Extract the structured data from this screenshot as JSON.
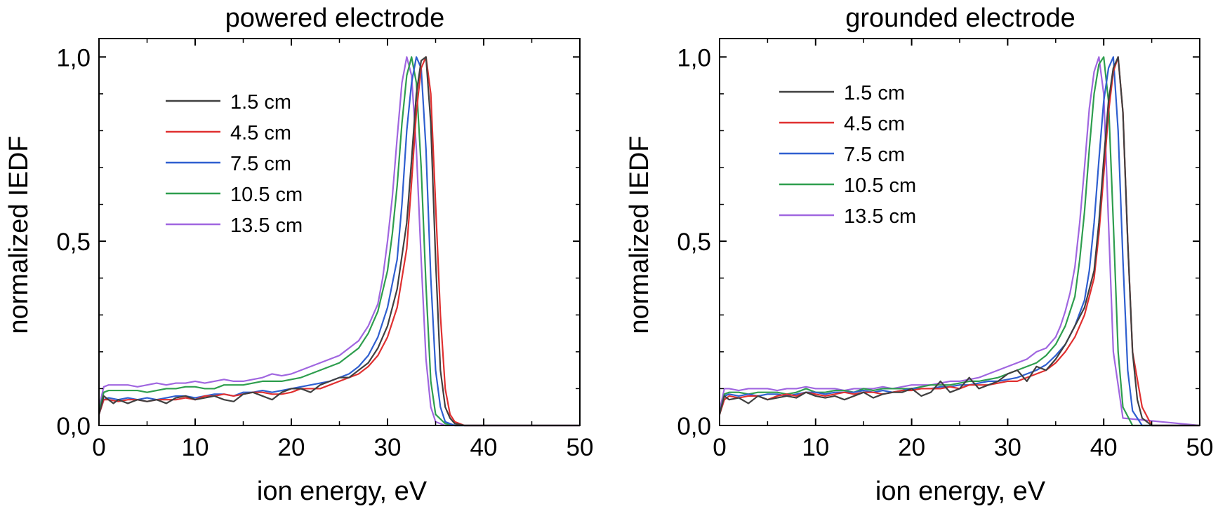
{
  "chart_data": [
    {
      "type": "line",
      "title": "powered electrode",
      "xlabel": "ion energy, eV",
      "ylabel": "normalized IEDF",
      "xlim": [
        0,
        50
      ],
      "ylim": [
        0,
        1.05
      ],
      "xticks": [
        0,
        10,
        20,
        30,
        40,
        50
      ],
      "yticks": [
        0.0,
        0.5,
        1.0
      ],
      "xtick_labels": [
        "0",
        "10",
        "20",
        "30",
        "40",
        "50"
      ],
      "ytick_labels": [
        "0,0",
        "0,5",
        "1,0"
      ],
      "legend_position": "top-left",
      "series": [
        {
          "name": "1.5 cm",
          "color": "#404040",
          "x": [
            0,
            0.5,
            1,
            1.5,
            2,
            3,
            4,
            5,
            6,
            7,
            8,
            9,
            10,
            11,
            12,
            13,
            14,
            15,
            16,
            17,
            18,
            19,
            20,
            21,
            22,
            23,
            24,
            25,
            26,
            27,
            28,
            29,
            30,
            31,
            32,
            32.5,
            33,
            33.5,
            34,
            34.5,
            35,
            35.5,
            36,
            36.5,
            37,
            38,
            40,
            50
          ],
          "y": [
            0.03,
            0.08,
            0.07,
            0.06,
            0.07,
            0.06,
            0.07,
            0.065,
            0.07,
            0.06,
            0.075,
            0.08,
            0.07,
            0.075,
            0.08,
            0.07,
            0.065,
            0.085,
            0.09,
            0.08,
            0.07,
            0.09,
            0.1,
            0.1,
            0.09,
            0.11,
            0.12,
            0.13,
            0.13,
            0.15,
            0.17,
            0.21,
            0.27,
            0.37,
            0.55,
            0.72,
            0.9,
            0.99,
            1.0,
            0.82,
            0.45,
            0.15,
            0.05,
            0.02,
            0.005,
            0,
            0,
            0
          ]
        },
        {
          "name": "4.5 cm",
          "color": "#e03030",
          "x": [
            0,
            0.5,
            1,
            2,
            3,
            4,
            5,
            6,
            7,
            8,
            9,
            10,
            11,
            12,
            13,
            14,
            15,
            16,
            17,
            18,
            19,
            20,
            21,
            22,
            23,
            24,
            25,
            26,
            27,
            28,
            29,
            30,
            31,
            32,
            32.5,
            33,
            33.5,
            34,
            34.5,
            35,
            35.5,
            36,
            36.5,
            37,
            38,
            40,
            50
          ],
          "y": [
            0.03,
            0.07,
            0.07,
            0.065,
            0.07,
            0.07,
            0.065,
            0.07,
            0.07,
            0.07,
            0.075,
            0.07,
            0.08,
            0.08,
            0.085,
            0.08,
            0.085,
            0.09,
            0.09,
            0.085,
            0.085,
            0.09,
            0.1,
            0.1,
            0.1,
            0.11,
            0.12,
            0.13,
            0.14,
            0.16,
            0.19,
            0.24,
            0.32,
            0.48,
            0.66,
            0.85,
            0.97,
            1.0,
            0.9,
            0.6,
            0.3,
            0.1,
            0.03,
            0.01,
            0,
            0,
            0
          ]
        },
        {
          "name": "7.5 cm",
          "color": "#2f5fd0",
          "x": [
            0,
            0.5,
            1,
            2,
            3,
            4,
            5,
            6,
            7,
            8,
            9,
            10,
            11,
            12,
            13,
            14,
            15,
            16,
            17,
            18,
            19,
            20,
            21,
            22,
            23,
            24,
            25,
            26,
            27,
            28,
            29,
            30,
            31,
            31.5,
            32,
            32.5,
            33,
            33.5,
            34,
            34.5,
            35,
            35.5,
            36,
            37,
            38,
            40,
            50
          ],
          "y": [
            0.03,
            0.07,
            0.075,
            0.07,
            0.075,
            0.07,
            0.075,
            0.07,
            0.075,
            0.08,
            0.08,
            0.075,
            0.08,
            0.085,
            0.085,
            0.08,
            0.09,
            0.09,
            0.095,
            0.09,
            0.095,
            0.1,
            0.105,
            0.11,
            0.115,
            0.12,
            0.13,
            0.14,
            0.16,
            0.19,
            0.24,
            0.32,
            0.45,
            0.6,
            0.8,
            0.93,
            1.0,
            0.97,
            0.75,
            0.4,
            0.15,
            0.05,
            0.01,
            0,
            0,
            0,
            0
          ]
        },
        {
          "name": "10.5 cm",
          "color": "#2e9e4e",
          "x": [
            0,
            0.5,
            1,
            2,
            3,
            4,
            5,
            6,
            7,
            8,
            9,
            10,
            11,
            12,
            13,
            14,
            15,
            16,
            17,
            18,
            19,
            20,
            21,
            22,
            23,
            24,
            25,
            26,
            27,
            28,
            29,
            30,
            30.5,
            31,
            31.5,
            32,
            32.5,
            33,
            33.5,
            34,
            34.5,
            35,
            36,
            37,
            38,
            40,
            50
          ],
          "y": [
            0.04,
            0.09,
            0.095,
            0.095,
            0.095,
            0.095,
            0.09,
            0.095,
            0.1,
            0.1,
            0.105,
            0.105,
            0.1,
            0.1,
            0.11,
            0.11,
            0.11,
            0.115,
            0.12,
            0.12,
            0.12,
            0.125,
            0.13,
            0.14,
            0.15,
            0.16,
            0.17,
            0.19,
            0.21,
            0.25,
            0.31,
            0.42,
            0.52,
            0.65,
            0.82,
            0.95,
            1.0,
            0.93,
            0.7,
            0.38,
            0.12,
            0.03,
            0.005,
            0,
            0,
            0,
            0
          ]
        },
        {
          "name": "13.5 cm",
          "color": "#a066e0",
          "x": [
            0,
            0.5,
            1,
            2,
            3,
            4,
            5,
            6,
            7,
            8,
            9,
            10,
            11,
            12,
            13,
            14,
            15,
            16,
            17,
            18,
            19,
            20,
            21,
            22,
            23,
            24,
            25,
            26,
            27,
            28,
            29,
            29.5,
            30,
            30.5,
            31,
            31.5,
            32,
            32.5,
            33,
            33.5,
            34,
            34.5,
            35,
            36,
            38,
            40,
            50
          ],
          "y": [
            0.05,
            0.105,
            0.11,
            0.11,
            0.11,
            0.105,
            0.11,
            0.115,
            0.11,
            0.115,
            0.115,
            0.12,
            0.115,
            0.12,
            0.125,
            0.12,
            0.12,
            0.125,
            0.13,
            0.14,
            0.135,
            0.14,
            0.15,
            0.16,
            0.17,
            0.18,
            0.19,
            0.21,
            0.23,
            0.27,
            0.33,
            0.4,
            0.5,
            0.62,
            0.78,
            0.93,
            1.0,
            0.95,
            0.75,
            0.45,
            0.18,
            0.05,
            0.01,
            0,
            0,
            0,
            0
          ]
        }
      ]
    },
    {
      "type": "line",
      "title": "grounded electrode",
      "xlabel": "ion energy, eV",
      "ylabel": "normalized IEDF",
      "xlim": [
        0,
        50
      ],
      "ylim": [
        0,
        1.05
      ],
      "xticks": [
        0,
        10,
        20,
        30,
        40,
        50
      ],
      "yticks": [
        0.0,
        0.5,
        1.0
      ],
      "xtick_labels": [
        "0",
        "10",
        "20",
        "30",
        "40",
        "50"
      ],
      "ytick_labels": [
        "0,0",
        "0,5",
        "1,0"
      ],
      "legend_position": "top-left",
      "series": [
        {
          "name": "1.5 cm",
          "color": "#404040",
          "x": [
            0,
            0.5,
            1,
            2,
            3,
            4,
            5,
            6,
            7,
            8,
            9,
            10,
            11,
            12,
            13,
            14,
            15,
            16,
            17,
            18,
            19,
            20,
            21,
            22,
            23,
            24,
            25,
            26,
            27,
            28,
            29,
            30,
            31,
            32,
            33,
            34,
            35,
            36,
            37,
            38,
            39,
            39.5,
            40,
            40.5,
            41,
            41.5,
            42,
            42.5,
            43,
            43.5,
            44,
            45,
            46,
            50
          ],
          "y": [
            0.03,
            0.08,
            0.07,
            0.075,
            0.06,
            0.08,
            0.07,
            0.075,
            0.08,
            0.075,
            0.09,
            0.08,
            0.075,
            0.08,
            0.07,
            0.08,
            0.09,
            0.075,
            0.085,
            0.09,
            0.09,
            0.1,
            0.08,
            0.09,
            0.12,
            0.09,
            0.1,
            0.13,
            0.1,
            0.11,
            0.12,
            0.14,
            0.15,
            0.12,
            0.16,
            0.15,
            0.18,
            0.22,
            0.27,
            0.32,
            0.42,
            0.55,
            0.72,
            0.88,
            0.97,
            1.0,
            0.85,
            0.5,
            0.2,
            0.07,
            0.02,
            0,
            0,
            0
          ]
        },
        {
          "name": "4.5 cm",
          "color": "#e03030",
          "x": [
            0,
            0.5,
            1,
            2,
            3,
            4,
            5,
            6,
            7,
            8,
            9,
            10,
            11,
            12,
            13,
            14,
            15,
            16,
            17,
            18,
            19,
            20,
            21,
            22,
            23,
            24,
            25,
            26,
            27,
            28,
            29,
            30,
            31,
            32,
            33,
            34,
            35,
            36,
            37,
            38,
            39,
            39.5,
            40,
            40.5,
            41,
            41.5,
            42,
            42.5,
            43,
            44,
            45,
            50
          ],
          "y": [
            0.03,
            0.07,
            0.08,
            0.075,
            0.08,
            0.08,
            0.07,
            0.08,
            0.085,
            0.08,
            0.09,
            0.085,
            0.08,
            0.085,
            0.09,
            0.085,
            0.09,
            0.09,
            0.085,
            0.09,
            0.095,
            0.095,
            0.1,
            0.1,
            0.1,
            0.105,
            0.1,
            0.11,
            0.11,
            0.11,
            0.115,
            0.12,
            0.12,
            0.13,
            0.14,
            0.15,
            0.17,
            0.2,
            0.24,
            0.3,
            0.4,
            0.52,
            0.68,
            0.85,
            0.96,
            1.0,
            0.85,
            0.5,
            0.2,
            0.05,
            0,
            0
          ]
        },
        {
          "name": "7.5 cm",
          "color": "#2f5fd0",
          "x": [
            0,
            0.5,
            1,
            2,
            3,
            4,
            5,
            6,
            7,
            8,
            9,
            10,
            11,
            12,
            13,
            14,
            15,
            16,
            17,
            18,
            19,
            20,
            21,
            22,
            23,
            24,
            25,
            26,
            27,
            28,
            29,
            30,
            31,
            32,
            33,
            34,
            35,
            36,
            37,
            38,
            38.5,
            39,
            39.5,
            40,
            40.5,
            41,
            41.5,
            42,
            42.5,
            43,
            44,
            50
          ],
          "y": [
            0.03,
            0.08,
            0.085,
            0.08,
            0.085,
            0.08,
            0.085,
            0.085,
            0.08,
            0.085,
            0.09,
            0.09,
            0.085,
            0.09,
            0.09,
            0.09,
            0.095,
            0.09,
            0.095,
            0.09,
            0.095,
            0.1,
            0.1,
            0.1,
            0.105,
            0.105,
            0.11,
            0.11,
            0.115,
            0.12,
            0.12,
            0.125,
            0.13,
            0.14,
            0.15,
            0.165,
            0.19,
            0.22,
            0.27,
            0.34,
            0.42,
            0.55,
            0.72,
            0.88,
            0.97,
            1.0,
            0.8,
            0.45,
            0.15,
            0.04,
            0,
            0
          ]
        },
        {
          "name": "10.5 cm",
          "color": "#2e9e4e",
          "x": [
            0,
            0.5,
            1,
            2,
            3,
            4,
            5,
            6,
            7,
            8,
            9,
            10,
            11,
            12,
            13,
            14,
            15,
            16,
            17,
            18,
            19,
            20,
            21,
            22,
            23,
            24,
            25,
            26,
            27,
            28,
            29,
            30,
            31,
            32,
            33,
            34,
            35,
            36,
            37,
            37.5,
            38,
            38.5,
            39,
            39.5,
            40,
            40.5,
            41,
            41.5,
            42,
            43,
            50
          ],
          "y": [
            0.03,
            0.085,
            0.09,
            0.09,
            0.085,
            0.09,
            0.09,
            0.09,
            0.085,
            0.09,
            0.1,
            0.09,
            0.09,
            0.095,
            0.095,
            0.09,
            0.1,
            0.095,
            0.1,
            0.1,
            0.1,
            0.1,
            0.105,
            0.11,
            0.11,
            0.11,
            0.115,
            0.12,
            0.12,
            0.125,
            0.13,
            0.14,
            0.15,
            0.16,
            0.17,
            0.19,
            0.22,
            0.27,
            0.35,
            0.45,
            0.58,
            0.75,
            0.9,
            0.98,
            1.0,
            0.88,
            0.55,
            0.2,
            0.05,
            0,
            0
          ]
        },
        {
          "name": "13.5 cm",
          "color": "#a066e0",
          "x": [
            0,
            0.5,
            1,
            2,
            3,
            4,
            5,
            6,
            7,
            8,
            9,
            10,
            11,
            12,
            13,
            14,
            15,
            16,
            17,
            18,
            19,
            20,
            21,
            22,
            23,
            24,
            25,
            26,
            27,
            28,
            29,
            30,
            31,
            32,
            33,
            34,
            35,
            35.5,
            36,
            36.5,
            37,
            37.5,
            38,
            38.5,
            39,
            39.5,
            40,
            40.5,
            41,
            42,
            50
          ],
          "y": [
            0.04,
            0.1,
            0.1,
            0.095,
            0.1,
            0.1,
            0.1,
            0.095,
            0.1,
            0.1,
            0.105,
            0.1,
            0.1,
            0.1,
            0.095,
            0.1,
            0.1,
            0.1,
            0.105,
            0.1,
            0.105,
            0.11,
            0.11,
            0.11,
            0.115,
            0.12,
            0.12,
            0.125,
            0.13,
            0.14,
            0.15,
            0.16,
            0.17,
            0.18,
            0.2,
            0.21,
            0.24,
            0.27,
            0.31,
            0.36,
            0.43,
            0.55,
            0.7,
            0.86,
            0.96,
            1.0,
            0.9,
            0.55,
            0.2,
            0.02,
            0
          ]
        }
      ]
    }
  ]
}
